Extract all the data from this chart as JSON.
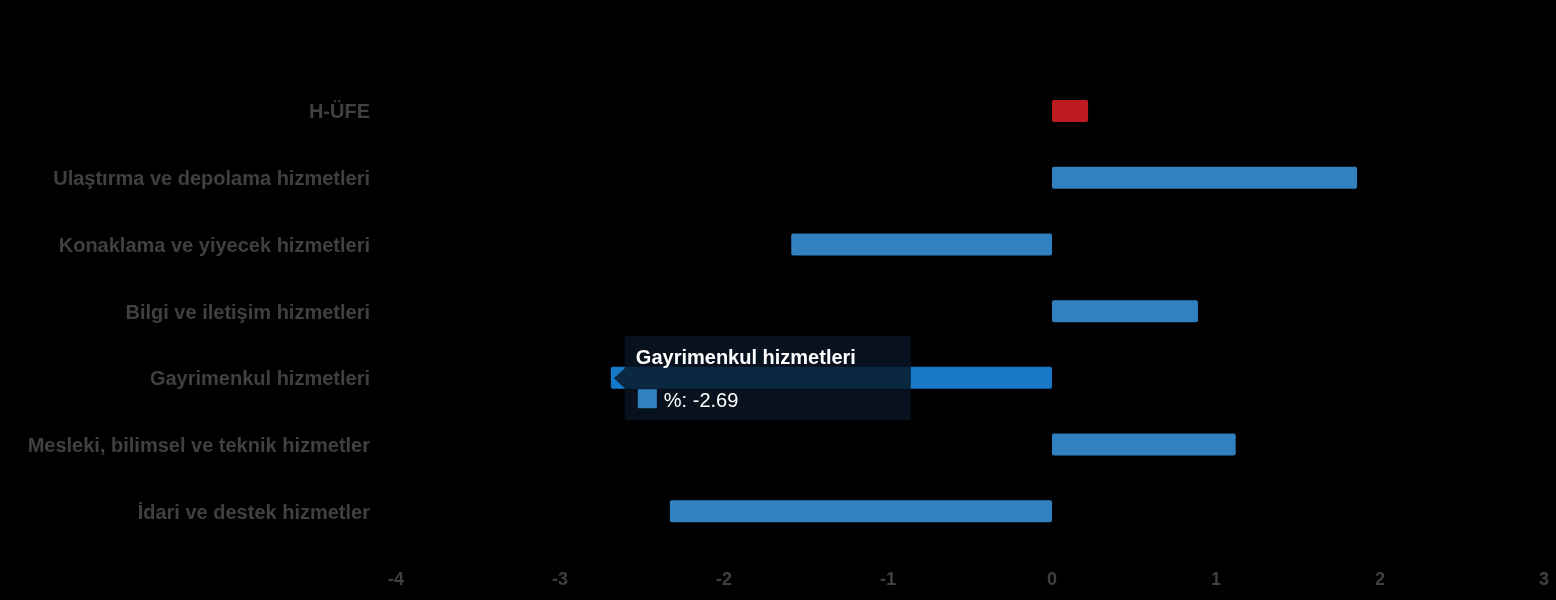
{
  "chart_data": {
    "type": "bar",
    "orientation": "horizontal",
    "categories": [
      "H-ÜFE",
      "Ulaştırma ve depolama hizmetleri",
      "Konaklama ve yiyecek hizmetleri",
      "Bilgi ve iletişim hizmetleri",
      "Gayrimenkul hizmetleri",
      "Mesleki, bilimsel ve teknik hizmetler",
      "İdari ve destek hizmetler"
    ],
    "series": [
      {
        "color": "#3181c1",
        "colors": [
          "#be1a22",
          "#3181c1",
          "#3181c1",
          "#3181c1",
          "#1778c8",
          "#3181c1",
          "#3181c1"
        ],
        "values": [
          0.22,
          1.86,
          -1.59,
          0.89,
          -2.69,
          1.12,
          -2.33
        ],
        "value_labels": [
          null,
          null,
          null,
          null,
          "%: -2.69",
          null,
          null
        ]
      }
    ],
    "xlim": [
      -4,
      3
    ],
    "xticks": [
      -4,
      -3,
      -2,
      -1,
      0,
      1,
      2,
      3
    ]
  }
}
